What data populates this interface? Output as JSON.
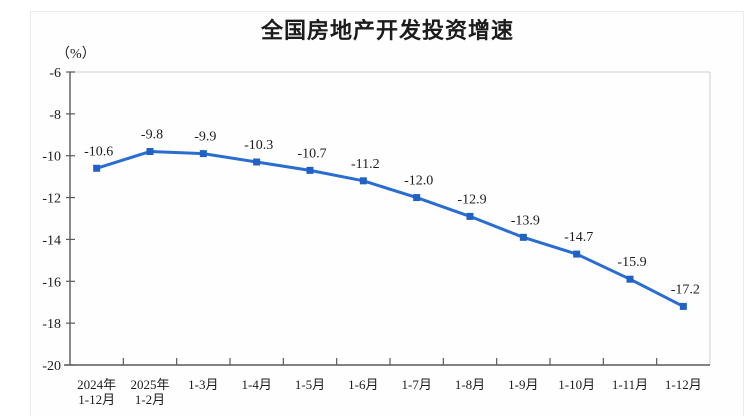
{
  "page": {
    "title": "全国房地产开发投资增速",
    "unit_label": "（%）"
  },
  "chart_data": {
    "type": "line",
    "title": "全国房地产开发投资增速",
    "ylabel": "（%）",
    "xlabel": "",
    "categories": [
      [
        "2024年",
        "1-12月"
      ],
      [
        "2025年",
        "1-2月"
      ],
      [
        "1-3月"
      ],
      [
        "1-4月"
      ],
      [
        "1-5月"
      ],
      [
        "1-6月"
      ],
      [
        "1-7月"
      ],
      [
        "1-8月"
      ],
      [
        "1-9月"
      ],
      [
        "1-10月"
      ],
      [
        "1-11月"
      ],
      [
        "1-12月"
      ]
    ],
    "values": [
      -10.6,
      -9.8,
      -9.9,
      -10.3,
      -10.7,
      -11.2,
      -12.0,
      -12.9,
      -13.9,
      -14.7,
      -15.9,
      -17.2
    ],
    "data_labels": [
      "-10.6",
      "-9.8",
      "-9.9",
      "-10.3",
      "-10.7",
      "-11.2",
      "-12.0",
      "-12.9",
      "-13.9",
      "-14.7",
      "-15.9",
      "-17.2"
    ],
    "y_ticks": [
      -6,
      -8,
      -10,
      -12,
      -14,
      -16,
      -18,
      -20
    ],
    "ylim": [
      -20,
      -6
    ],
    "grid": false,
    "legend": "none",
    "line_color": "#2a6dd1",
    "marker_color": "#2160c4",
    "marker_shape": "square",
    "axis_color": "#595959",
    "frame_color": "#d9d9d9",
    "label_color": "#1c1c1c"
  }
}
